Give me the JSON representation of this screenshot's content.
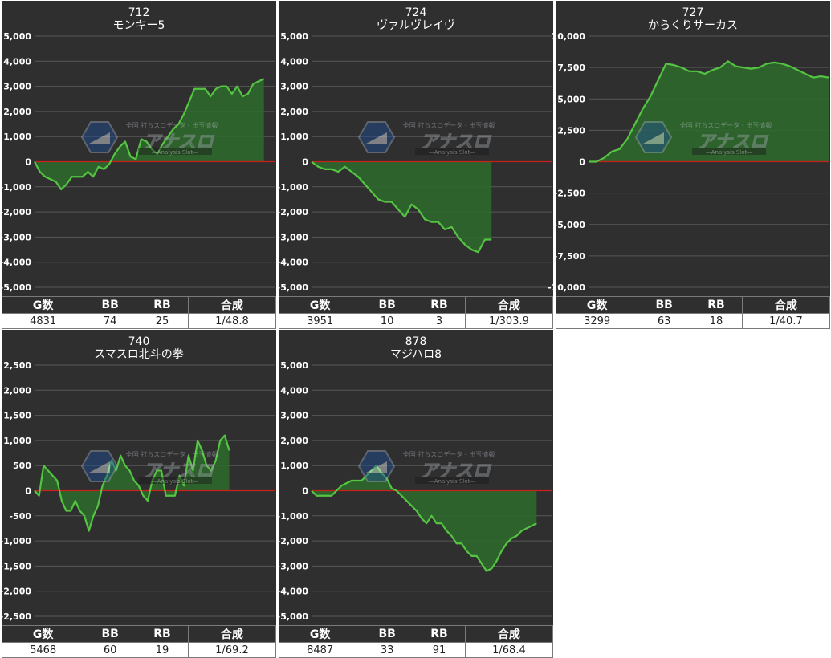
{
  "charts": [
    {
      "number": "712",
      "name": "モンキー5",
      "stats": {
        "headers": [
          "G数",
          "BB",
          "RB",
          "合成"
        ],
        "values": [
          "4831",
          "74",
          "25",
          "1/48.8"
        ]
      },
      "chart_data": {
        "type": "area",
        "title": "712 モンキー5",
        "ylim": [
          -5000,
          5000
        ],
        "yticks": [
          5000,
          4000,
          3000,
          2000,
          1000,
          0,
          -1000,
          -2000,
          -3000,
          -4000,
          -5000
        ],
        "ytick_labels": [
          "5,000",
          "4,000",
          "3,000",
          "2,000",
          "1,000",
          "0",
          "-1,000",
          "-2,000",
          "-3,000",
          "-4,000",
          "-5,000"
        ],
        "x": [
          0,
          1,
          2,
          3,
          4,
          5,
          6,
          7,
          8,
          9,
          10,
          11,
          12,
          13,
          14,
          15,
          16,
          17,
          18,
          19,
          20,
          21,
          22,
          23,
          24,
          25,
          26,
          27,
          28,
          29,
          30,
          31,
          32,
          33,
          34,
          35,
          36,
          37,
          38,
          39,
          40,
          41,
          42,
          43,
          44,
          45
        ],
        "values": [
          0,
          -400,
          -600,
          -700,
          -800,
          -1100,
          -900,
          -600,
          -600,
          -600,
          -400,
          -600,
          -200,
          -300,
          -100,
          300,
          600,
          800,
          200,
          100,
          900,
          800,
          500,
          300,
          700,
          1000,
          1300,
          1500,
          1900,
          2400,
          2900,
          2900,
          2900,
          2600,
          2900,
          3000,
          3000,
          2700,
          3000,
          2600,
          2700,
          3100,
          3200,
          3300,
          null,
          null
        ],
        "grid": true
      }
    },
    {
      "number": "724",
      "name": "ヴァルヴレイヴ",
      "stats": {
        "headers": [
          "G数",
          "BB",
          "RB",
          "合成"
        ],
        "values": [
          "3951",
          "10",
          "3",
          "1/303.9"
        ]
      },
      "chart_data": {
        "type": "area",
        "title": "724 ヴァルヴレイヴ",
        "ylim": [
          -5000,
          5000
        ],
        "yticks": [
          5000,
          4000,
          3000,
          2000,
          1000,
          0,
          -1000,
          -2000,
          -3000,
          -4000,
          -5000
        ],
        "ytick_labels": [
          "5,000",
          "4,000",
          "3,000",
          "2,000",
          "1,000",
          "0",
          "-1,000",
          "-2,000",
          "-3,000",
          "-4,000",
          "-5,000"
        ],
        "x": [
          0,
          1,
          2,
          3,
          4,
          5,
          6,
          7,
          8,
          9,
          10,
          11,
          12,
          13,
          14,
          15,
          16,
          17,
          18,
          19,
          20,
          21,
          22,
          23,
          24,
          25,
          26,
          27,
          28,
          29,
          30,
          31,
          32,
          33,
          34,
          35,
          36
        ],
        "values": [
          0,
          -200,
          -300,
          -300,
          -400,
          -200,
          -400,
          -600,
          -900,
          -1200,
          -1500,
          -1600,
          -1600,
          -1900,
          -2200,
          -1700,
          -1900,
          -2300,
          -2400,
          -2400,
          -2700,
          -2600,
          -3000,
          -3300,
          -3500,
          -3600,
          -3100,
          -3100,
          null,
          null,
          null,
          null,
          null,
          null,
          null,
          null,
          null
        ],
        "grid": true
      }
    },
    {
      "number": "727",
      "name": "からくりサーカス",
      "stats": {
        "headers": [
          "G数",
          "BB",
          "RB",
          "合成"
        ],
        "values": [
          "3299",
          "63",
          "18",
          "1/40.7"
        ]
      },
      "chart_data": {
        "type": "area",
        "title": "727 からくりサーカス",
        "ylim": [
          -10000,
          10000
        ],
        "yticks": [
          10000,
          7500,
          5000,
          2500,
          0,
          -2500,
          -5000,
          -7500,
          -10000
        ],
        "ytick_labels": [
          "10,000",
          "7,500",
          "5,000",
          "2,500",
          "0",
          "-2,500",
          "-5,000",
          "-7,500",
          "-10,000"
        ],
        "x": [
          0,
          1,
          2,
          3,
          4,
          5,
          6,
          7,
          8,
          9,
          10,
          11,
          12,
          13,
          14,
          15,
          16,
          17,
          18,
          19,
          20,
          21,
          22,
          23,
          24,
          25,
          26,
          27,
          28,
          29,
          30,
          31
        ],
        "values": [
          0,
          0,
          300,
          800,
          1000,
          1800,
          3000,
          4200,
          5200,
          6500,
          7800,
          7700,
          7500,
          7200,
          7200,
          7000,
          7300,
          7500,
          8000,
          7600,
          7500,
          7400,
          7500,
          7800,
          7900,
          7800,
          7600,
          7300,
          7000,
          6700,
          6800,
          6700
        ],
        "grid": true
      }
    },
    {
      "number": "740",
      "name": "スマスロ北斗の拳",
      "stats": {
        "headers": [
          "G数",
          "BB",
          "RB",
          "合成"
        ],
        "values": [
          "5468",
          "60",
          "19",
          "1/69.2"
        ]
      },
      "chart_data": {
        "type": "area",
        "title": "740 スマスロ北斗の拳",
        "ylim": [
          -2500,
          2500
        ],
        "yticks": [
          2500,
          2000,
          1500,
          1000,
          500,
          0,
          -500,
          -1000,
          -1500,
          -2000,
          -2500
        ],
        "ytick_labels": [
          "2,500",
          "2,000",
          "1,500",
          "1,000",
          "500",
          "0",
          "-500",
          "-1,000",
          "-1,500",
          "-2,000",
          "-2,500"
        ],
        "x": [
          0,
          1,
          2,
          3,
          4,
          5,
          6,
          7,
          8,
          9,
          10,
          11,
          12,
          13,
          14,
          15,
          16,
          17,
          18,
          19,
          20,
          21,
          22,
          23,
          24,
          25,
          26,
          27,
          28,
          29,
          30,
          31,
          32,
          33,
          34,
          35,
          36,
          37,
          38,
          39,
          40,
          41,
          42,
          43,
          44,
          45,
          46,
          47,
          48,
          49,
          50,
          51,
          52,
          53
        ],
        "values": [
          0,
          -100,
          500,
          400,
          300,
          200,
          -200,
          -400,
          -400,
          -200,
          -400,
          -500,
          -800,
          -500,
          -300,
          100,
          300,
          600,
          400,
          700,
          500,
          400,
          200,
          100,
          -100,
          -200,
          200,
          400,
          400,
          -100,
          -100,
          -100,
          300,
          100,
          700,
          400,
          1000,
          800,
          500,
          400,
          600,
          1000,
          1100,
          800,
          null,
          null,
          null,
          null,
          null,
          null,
          null,
          null,
          null,
          null
        ],
        "grid": true
      }
    },
    {
      "number": "878",
      "name": "マジハロ8",
      "stats": {
        "headers": [
          "G数",
          "BB",
          "RB",
          "合成"
        ],
        "values": [
          "8487",
          "33",
          "91",
          "1/68.4"
        ]
      },
      "chart_data": {
        "type": "area",
        "title": "878 マジハロ8",
        "ylim": [
          -5000,
          5000
        ],
        "yticks": [
          5000,
          4000,
          3000,
          2000,
          1000,
          0,
          -1000,
          -2000,
          -3000,
          -4000,
          -5000
        ],
        "ytick_labels": [
          "5,000",
          "4,000",
          "3,000",
          "2,000",
          "1,000",
          "0",
          "-1,000",
          "-2,000",
          "-3,000",
          "-4,000",
          "-5,000"
        ],
        "x": [
          0,
          1,
          2,
          3,
          4,
          5,
          6,
          7,
          8,
          9,
          10,
          11,
          12,
          13,
          14,
          15,
          16,
          17,
          18,
          19,
          20,
          21,
          22,
          23,
          24,
          25,
          26,
          27,
          28,
          29,
          30,
          31,
          32,
          33,
          34,
          35,
          36,
          37,
          38,
          39,
          40,
          41,
          42,
          43,
          44,
          45,
          46,
          47,
          48
        ],
        "values": [
          0,
          -200,
          -200,
          -200,
          -200,
          0,
          200,
          300,
          400,
          400,
          400,
          600,
          800,
          1000,
          700,
          500,
          100,
          0,
          -200,
          -400,
          -600,
          -800,
          -1100,
          -1300,
          -1000,
          -1300,
          -1300,
          -1600,
          -1800,
          -2100,
          -2100,
          -2400,
          -2600,
          -2600,
          -2900,
          -3200,
          -3100,
          -2800,
          -2400,
          -2100,
          -1900,
          -1800,
          -1600,
          -1500,
          -1400,
          -1300,
          null,
          null,
          null
        ],
        "grid": true
      }
    }
  ],
  "watermark": {
    "top_text": "全国 打ちスロデータ・出玉情報",
    "logo_text": "アナスロ",
    "sub_text": "—Analysis Slot—"
  },
  "colors": {
    "panel_bg": "#2f2f2f",
    "line": "#55c443",
    "fill": "#2e6b2b",
    "zero_line": "#c8201b",
    "grid": "#585858",
    "text": "#ffffff"
  }
}
